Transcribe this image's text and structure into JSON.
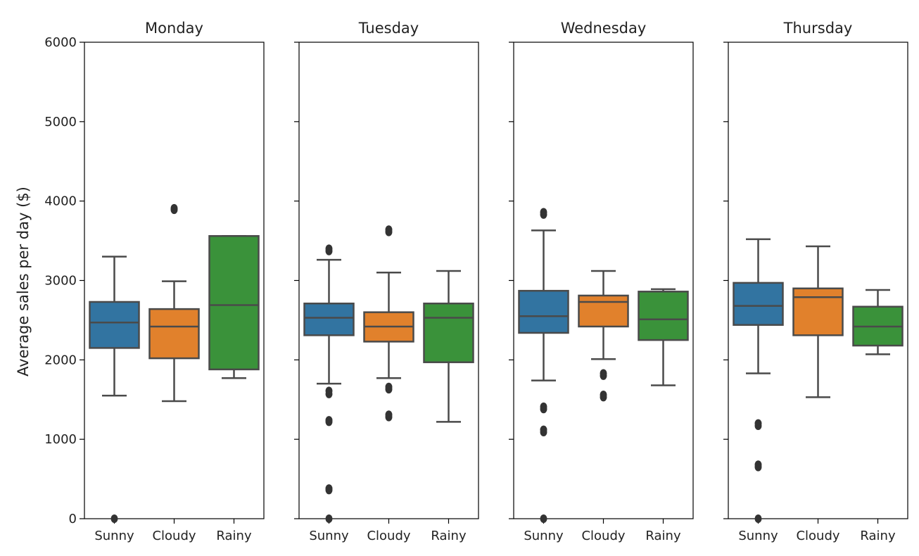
{
  "chart_data": {
    "type": "box",
    "ylabel": "Average sales per day ($)",
    "ylim": [
      0,
      6000
    ],
    "yticks": [
      "0",
      "1000",
      "2000",
      "3000",
      "4000",
      "5000",
      "6000"
    ],
    "categories": [
      "Sunny",
      "Cloudy",
      "Rainy"
    ],
    "colors": {
      "Sunny": "#3274a1",
      "Cloudy": "#e1812c",
      "Rainy": "#3a923a"
    },
    "panels": [
      {
        "title": "Monday",
        "boxes": [
          {
            "category": "Sunny",
            "whisker_low": 1550,
            "q1": 2150,
            "median": 2470,
            "q3": 2730,
            "whisker_high": 3300,
            "outliers": [
              0
            ]
          },
          {
            "category": "Cloudy",
            "whisker_low": 1480,
            "q1": 2020,
            "median": 2420,
            "q3": 2640,
            "whisker_high": 2990,
            "outliers": [
              3890,
              3910
            ]
          },
          {
            "category": "Rainy",
            "whisker_low": 1770,
            "q1": 1880,
            "median": 2690,
            "q3": 3560,
            "whisker_high": 3560,
            "outliers": []
          }
        ]
      },
      {
        "title": "Tuesday",
        "boxes": [
          {
            "category": "Sunny",
            "whisker_low": 1700,
            "q1": 2310,
            "median": 2530,
            "q3": 2710,
            "whisker_high": 3260,
            "outliers": [
              3370,
              3400,
              1570,
              1610,
              1220,
              1240,
              360,
              380,
              0
            ]
          },
          {
            "category": "Cloudy",
            "whisker_low": 1770,
            "q1": 2230,
            "median": 2420,
            "q3": 2600,
            "whisker_high": 3100,
            "outliers": [
              3610,
              3640,
              1630,
              1660,
              1280,
              1310
            ]
          },
          {
            "category": "Rainy",
            "whisker_low": 1220,
            "q1": 1970,
            "median": 2530,
            "q3": 2710,
            "whisker_high": 3120,
            "outliers": []
          }
        ]
      },
      {
        "title": "Wednesday",
        "boxes": [
          {
            "category": "Sunny",
            "whisker_low": 1740,
            "q1": 2340,
            "median": 2550,
            "q3": 2870,
            "whisker_high": 3630,
            "outliers": [
              3830,
              3860,
              1380,
              1410,
              1090,
              1120,
              0
            ]
          },
          {
            "category": "Cloudy",
            "whisker_low": 2010,
            "q1": 2420,
            "median": 2730,
            "q3": 2810,
            "whisker_high": 3120,
            "outliers": [
              1800,
              1830,
              1530,
              1560
            ]
          },
          {
            "category": "Rainy",
            "whisker_low": 1680,
            "q1": 2250,
            "median": 2510,
            "q3": 2860,
            "whisker_high": 2890,
            "outliers": []
          }
        ]
      },
      {
        "title": "Thursday",
        "boxes": [
          {
            "category": "Sunny",
            "whisker_low": 1830,
            "q1": 2440,
            "median": 2680,
            "q3": 2970,
            "whisker_high": 3520,
            "outliers": [
              1170,
              1200,
              650,
              680,
              0
            ]
          },
          {
            "category": "Cloudy",
            "whisker_low": 1530,
            "q1": 2310,
            "median": 2790,
            "q3": 2900,
            "whisker_high": 3430,
            "outliers": []
          },
          {
            "category": "Rainy",
            "whisker_low": 2070,
            "q1": 2180,
            "median": 2420,
            "q3": 2670,
            "whisker_high": 2880,
            "outliers": []
          }
        ]
      }
    ]
  }
}
